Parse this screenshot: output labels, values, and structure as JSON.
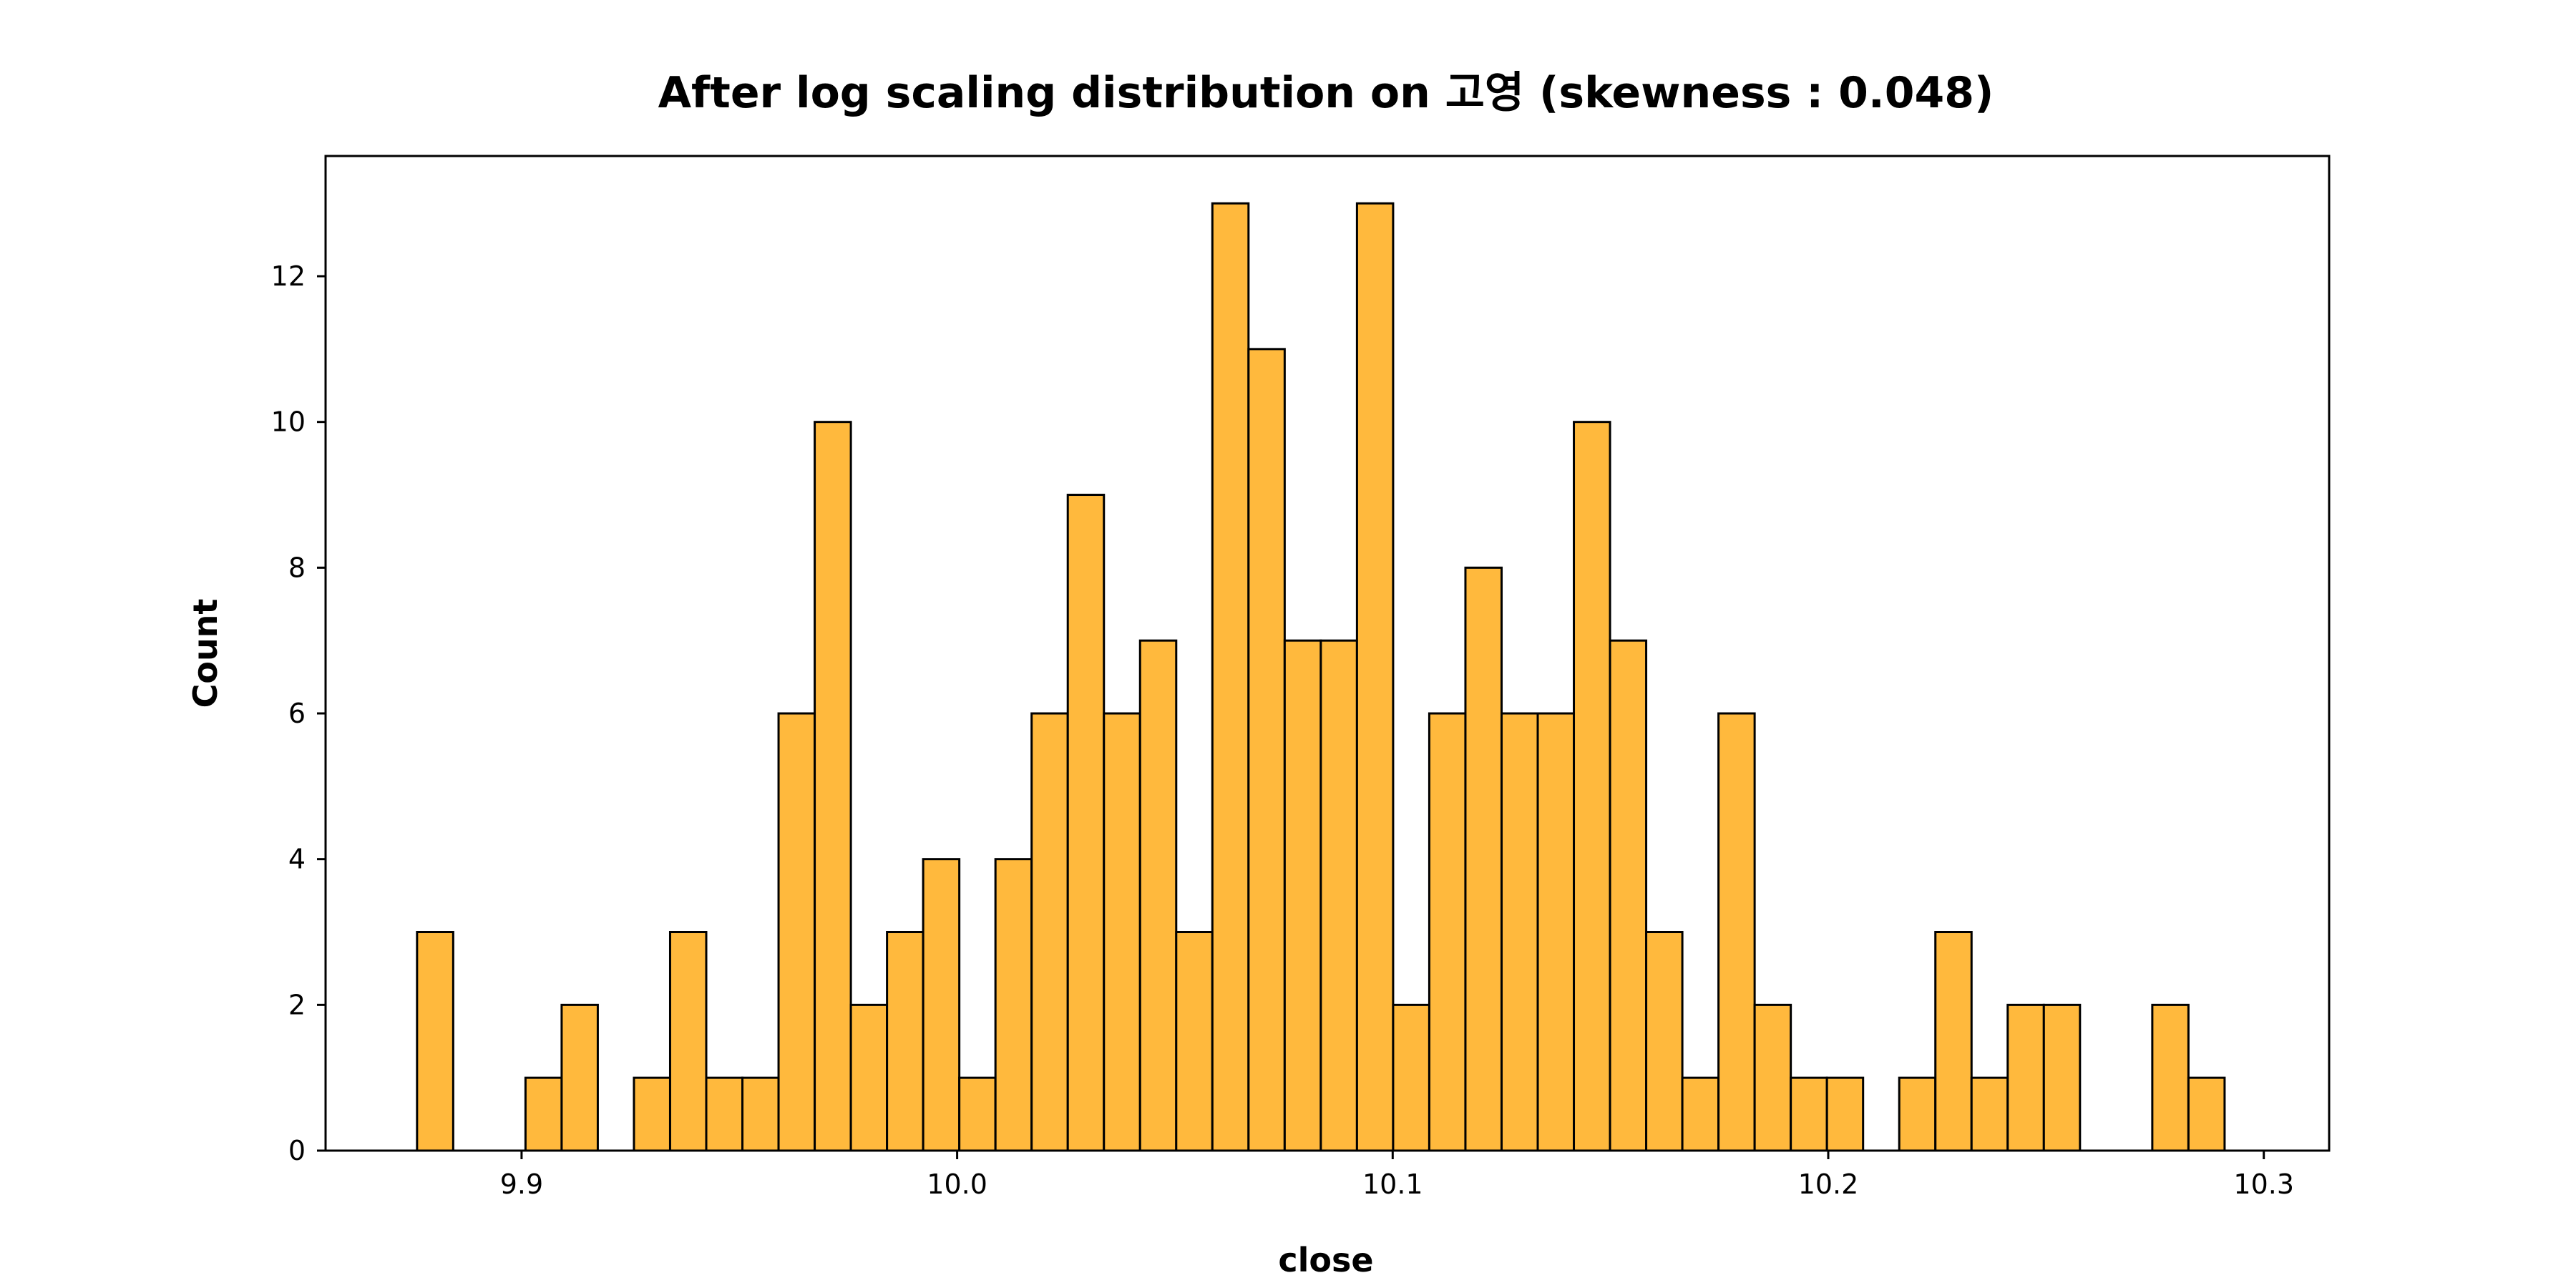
{
  "chart_data": {
    "type": "bar",
    "title": "After log scaling distribution on 고영 (skewness : 0.048)",
    "xlabel": "close",
    "ylabel": "Count",
    "xlim": [
      9.855,
      10.315
    ],
    "ylim": [
      0,
      13.65
    ],
    "bin_start": 9.876,
    "bin_width": 0.0083,
    "values": [
      3,
      0,
      0,
      1,
      2,
      0,
      1,
      3,
      1,
      1,
      6,
      10,
      2,
      3,
      4,
      1,
      4,
      6,
      9,
      6,
      7,
      3,
      13,
      11,
      7,
      7,
      13,
      2,
      6,
      8,
      6,
      6,
      10,
      7,
      3,
      1,
      6,
      2,
      1,
      1,
      0,
      1,
      3,
      1,
      2,
      2,
      0,
      0,
      2,
      1
    ],
    "x_ticks": [
      9.9,
      10.0,
      10.1,
      10.2,
      10.3
    ],
    "x_tick_labels": [
      "9.9",
      "10.0",
      "10.1",
      "10.2",
      "10.3"
    ],
    "y_ticks": [
      0,
      2,
      4,
      6,
      8,
      10,
      12
    ],
    "y_tick_labels": [
      "0",
      "2",
      "4",
      "6",
      "8",
      "10",
      "12"
    ],
    "bar_color": "#FFB93D",
    "edge_color": "#000000",
    "grid": false,
    "legend": "none"
  }
}
